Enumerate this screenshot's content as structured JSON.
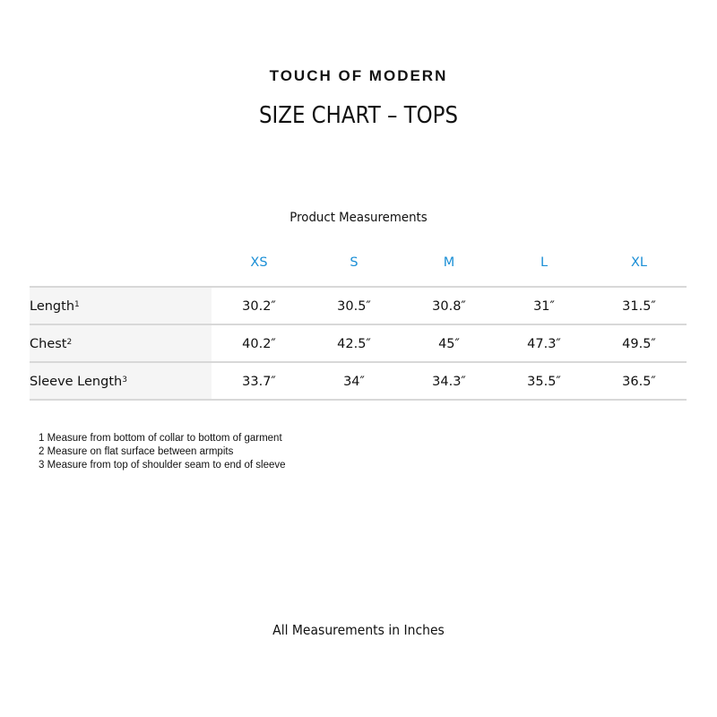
{
  "brand": "TOUCH OF MODERN",
  "title": "SIZE CHART – TOPS",
  "subtitle": "Product Measurements",
  "colors": {
    "size_header": "#1b8fd6",
    "label_bg": "#f5f5f5",
    "divider": "#d8d8d8"
  },
  "table": {
    "sizes": [
      "XS",
      "S",
      "M",
      "L",
      "XL"
    ],
    "rows": [
      {
        "label": "Length",
        "note": "1",
        "values": [
          "30.2″",
          "30.5″",
          "30.8″",
          "31″",
          "31.5″"
        ]
      },
      {
        "label": "Chest",
        "note": "2",
        "values": [
          "40.2″",
          "42.5″",
          "45″",
          "47.3″",
          "49.5″"
        ]
      },
      {
        "label": "Sleeve Length",
        "note": "3",
        "values": [
          "33.7″",
          "34″",
          "34.3″",
          "35.5″",
          "36.5″"
        ]
      }
    ]
  },
  "notes": [
    "1 Measure from bottom of collar to bottom of garment",
    "2 Measure on flat surface between armpits",
    "3 Measure from top of shoulder seam to end of sleeve"
  ],
  "footer": "All Measurements in Inches"
}
